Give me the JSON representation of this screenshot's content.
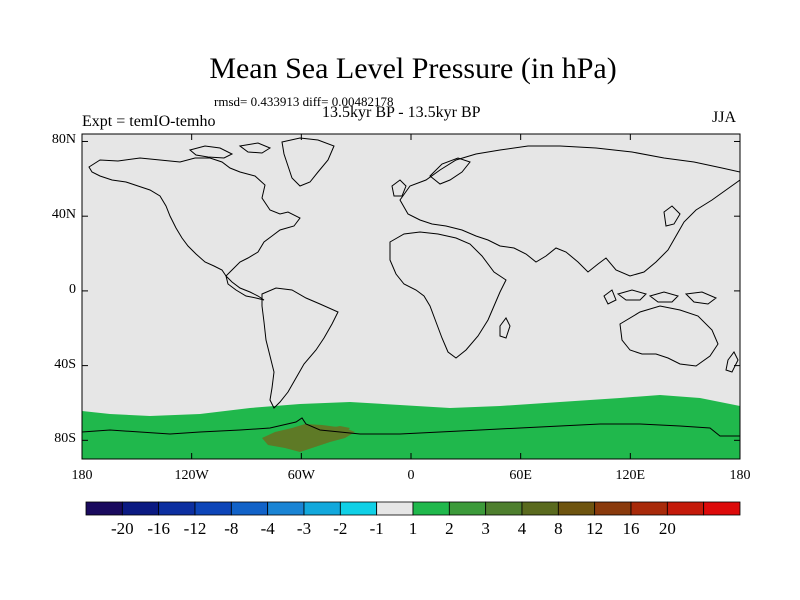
{
  "title": "Mean Sea Level Pressure (in hPa)",
  "stats": "rmsd= 0.433913 diff= 0.00482178",
  "period": "13.5kyr BP - 13.5kyr BP",
  "experiment": "Expt = temIO-temho",
  "season": "JJA",
  "map": {
    "ocean_color": "#e6e6e6",
    "coast_color": "#000000",
    "anomaly_color": "#20b84c",
    "anomaly_strong_color": "#5e7a26",
    "lat_ticks": [
      {
        "lat": 80,
        "label": "80N"
      },
      {
        "lat": 40,
        "label": "40N"
      },
      {
        "lat": 0,
        "label": "0"
      },
      {
        "lat": -40,
        "label": "40S"
      },
      {
        "lat": -80,
        "label": "80S"
      }
    ],
    "lon_ticks": [
      {
        "lon": -180,
        "label": "180"
      },
      {
        "lon": -120,
        "label": "120W"
      },
      {
        "lon": -60,
        "label": "60W"
      },
      {
        "lon": 0,
        "label": "0"
      },
      {
        "lon": 60,
        "label": "60E"
      },
      {
        "lon": 120,
        "label": "120E"
      },
      {
        "lon": 180,
        "label": "180"
      }
    ]
  },
  "colorbar": {
    "colors": [
      "#1a0a5e",
      "#0b1a82",
      "#0c2fa0",
      "#0d45b8",
      "#1162c8",
      "#1a84d4",
      "#12a8dc",
      "#10d0e6",
      "#e6e6e6",
      "#20b84c",
      "#3c9a3a",
      "#4e7f2e",
      "#5a6a1e",
      "#6e5410",
      "#8a3a0c",
      "#a82a0a",
      "#c41a0a",
      "#dd0a0a"
    ],
    "labels": [
      "-20",
      "-16",
      "-12",
      "-8",
      "-4",
      "-3",
      "-2",
      "-1",
      "1",
      "2",
      "3",
      "4",
      "8",
      "12",
      "16",
      "20"
    ]
  }
}
